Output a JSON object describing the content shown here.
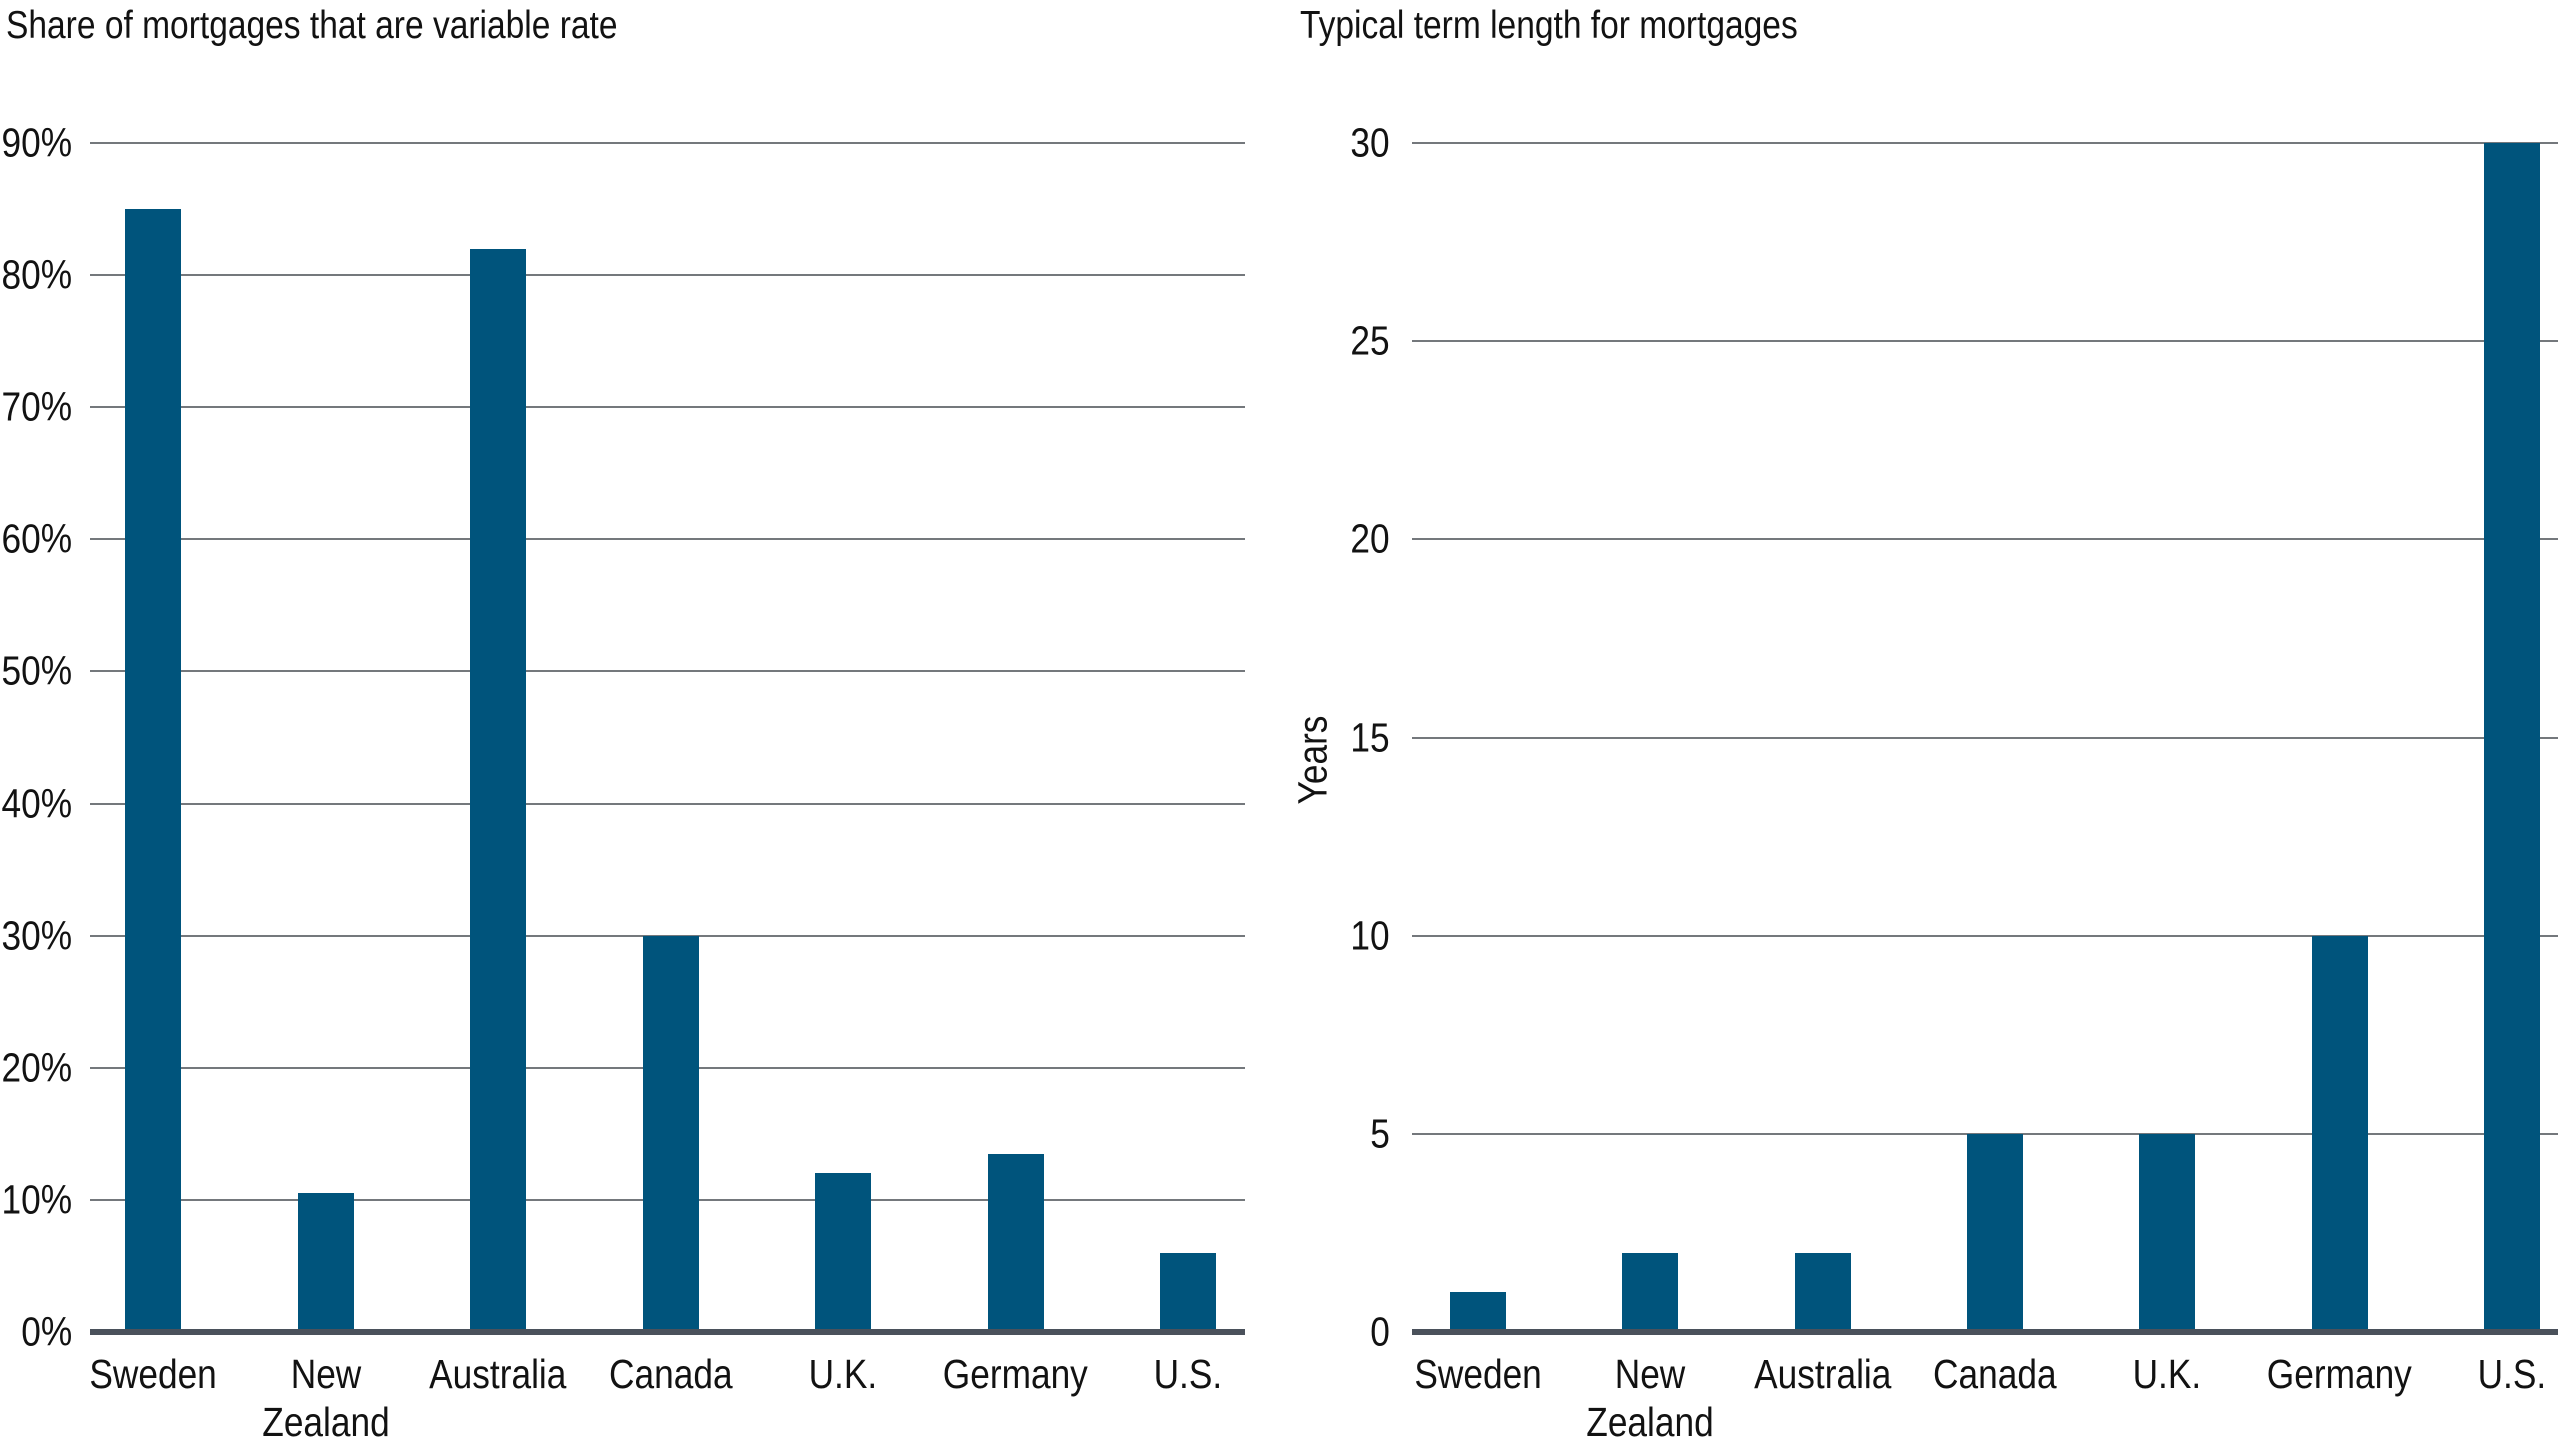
{
  "style": {
    "background": "#FFFFFF",
    "bar_color": "#00547C",
    "gridline_color": "#74787C",
    "axis_line_color": "#4A515B",
    "text_color": "#121212"
  },
  "chart_data": [
    {
      "type": "bar",
      "title": "Share of mortgages that are variable rate",
      "categories": [
        "Sweden",
        "New Zealand",
        "Australia",
        "Canada",
        "U.K.",
        "Germany",
        "U.S."
      ],
      "values": [
        85,
        10.5,
        82,
        30,
        12,
        13.5,
        6
      ],
      "unit": "percent",
      "xlabel": "",
      "ylabel": "",
      "ylim": [
        0,
        90
      ],
      "yticks": [
        {
          "value": 0,
          "label": "0%"
        },
        {
          "value": 10,
          "label": "10%"
        },
        {
          "value": 20,
          "label": "20%"
        },
        {
          "value": 30,
          "label": "30%"
        },
        {
          "value": 40,
          "label": "40%"
        },
        {
          "value": 50,
          "label": "50%"
        },
        {
          "value": 60,
          "label": "60%"
        },
        {
          "value": 70,
          "label": "70%"
        },
        {
          "value": 80,
          "label": "80%"
        },
        {
          "value": 90,
          "label": "90%"
        }
      ],
      "grid": "horizontal",
      "legend": "none"
    },
    {
      "type": "bar",
      "title": "Typical term length for mortgages",
      "categories": [
        "Sweden",
        "New Zealand",
        "Australia",
        "Canada",
        "U.K.",
        "Germany",
        "U.S."
      ],
      "values": [
        1,
        2,
        2,
        5,
        5,
        10,
        30
      ],
      "unit": "years",
      "xlabel": "",
      "ylabel": "Years",
      "ylim": [
        0,
        30
      ],
      "yticks": [
        {
          "value": 0,
          "label": "0"
        },
        {
          "value": 5,
          "label": "5"
        },
        {
          "value": 10,
          "label": "10"
        },
        {
          "value": 15,
          "label": "15"
        },
        {
          "value": 20,
          "label": "20"
        },
        {
          "value": 25,
          "label": "25"
        },
        {
          "value": 30,
          "label": "30"
        }
      ],
      "grid": "horizontal",
      "legend": "none"
    }
  ]
}
